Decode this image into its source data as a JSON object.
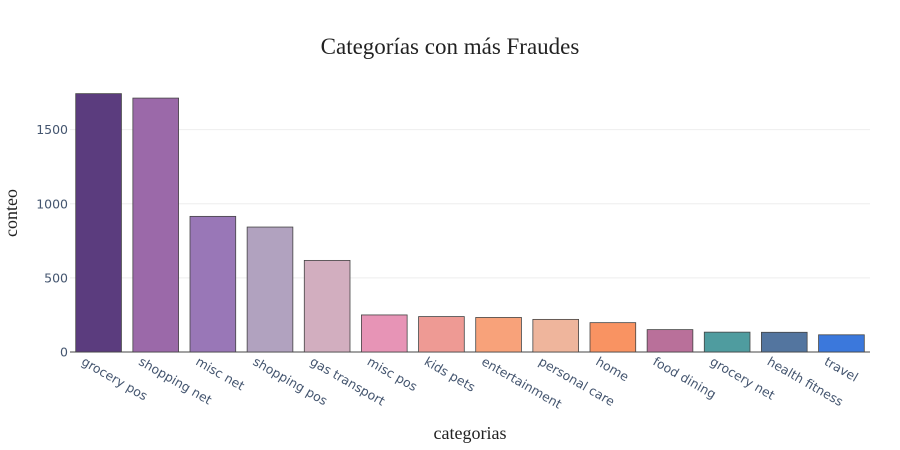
{
  "chart_data": {
    "type": "bar",
    "title": "Categorías con más Fraudes",
    "xlabel": "categorias",
    "ylabel": "conteo",
    "categories": [
      "grocery pos",
      "shopping net",
      "misc net",
      "shopping pos",
      "gas transport",
      "misc pos",
      "kids pets",
      "entertainment",
      "personal care",
      "home",
      "food dining",
      "grocery net",
      "health fitness",
      "travel"
    ],
    "values": [
      1743,
      1713,
      915,
      843,
      618,
      250,
      239,
      233,
      220,
      198,
      151,
      134,
      133,
      116
    ],
    "colors": [
      "#5b3c7e",
      "#9b69a9",
      "#9977b7",
      "#b1a2bf",
      "#d2aebf",
      "#e794b6",
      "#ee9a94",
      "#f8a27a",
      "#efb59c",
      "#f99362",
      "#b9709a",
      "#4f9c9f",
      "#53759f",
      "#3b78dc"
    ],
    "ylim": [
      0,
      1835
    ],
    "yticks": [
      0,
      500,
      1000,
      1500
    ],
    "grid": true,
    "legend": "none"
  }
}
